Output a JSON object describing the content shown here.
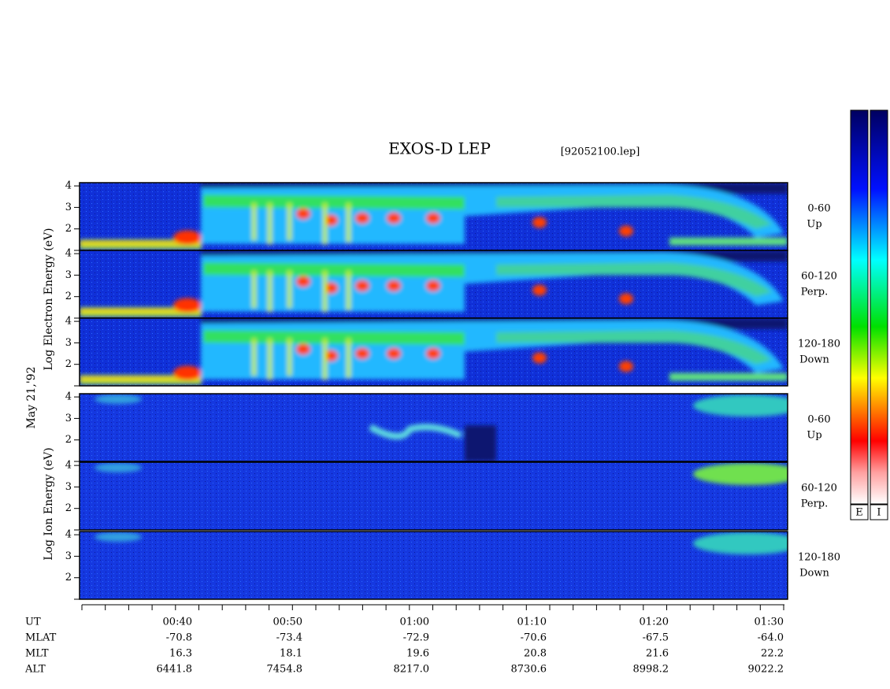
{
  "header": {
    "title": "EXOS-D LEP",
    "file": "[92052100.lep]"
  },
  "electron_axis_label": "Log Electron Energy (eV)",
  "ion_axis_label": "Log Ion Energy (eV)",
  "date": "May 21,'92",
  "energy_ylim": [
    1,
    4.15
  ],
  "panels": [
    {
      "angle": "0-60",
      "direction": "Up",
      "yticks": [
        2,
        3,
        4
      ]
    },
    {
      "angle": "60-120",
      "direction": "Perp.",
      "yticks": [
        2,
        3,
        4
      ]
    },
    {
      "angle": "120-180",
      "direction": "Down",
      "yticks": [
        2,
        3,
        4
      ]
    },
    {
      "angle": "0-60",
      "direction": "Up",
      "yticks": [
        2,
        3,
        4
      ]
    },
    {
      "angle": "60-120",
      "direction": "Perp.",
      "yticks": [
        2,
        3,
        4
      ]
    },
    {
      "angle": "120-180",
      "direction": "Down",
      "yticks": [
        2,
        3,
        4
      ]
    }
  ],
  "orbit": [
    {
      "label": "UT",
      "values": [
        "00:40",
        "00:50",
        "01:00",
        "01:10",
        "01:20",
        "01:30"
      ]
    },
    {
      "label": "MLAT",
      "values": [
        "-70.8",
        "-73.4",
        "-72.9",
        "-70.6",
        "-67.5",
        "-64.0"
      ]
    },
    {
      "label": "MLT",
      "values": [
        "16.3",
        "18.1",
        "19.6",
        "20.8",
        "21.6",
        "22.2"
      ]
    },
    {
      "label": "ALT",
      "values": [
        "6441.8",
        "7454.8",
        "8217.0",
        "8730.6",
        "8998.2",
        "9022.2"
      ]
    }
  ],
  "colorbars": [
    "E",
    "I"
  ]
}
